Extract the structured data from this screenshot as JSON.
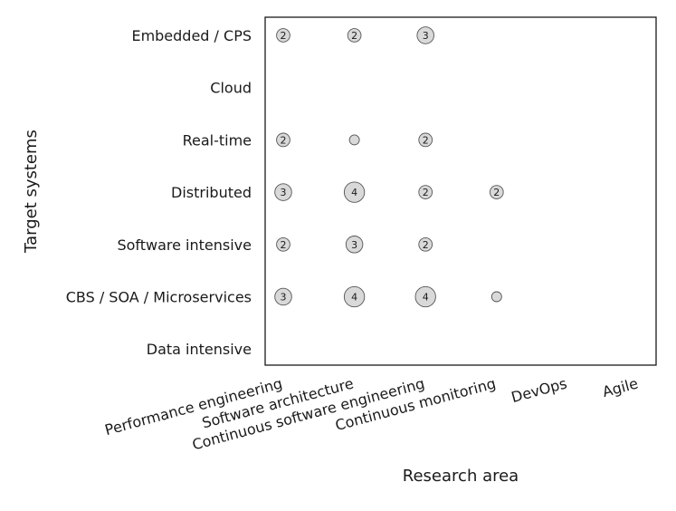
{
  "chart_data": {
    "type": "scatter",
    "xlabel": "Research area",
    "ylabel": "Target systems",
    "x_categories": [
      "Performance engineering",
      "Software architecture",
      "Continuous software engineering",
      "Continuous monitoring",
      "DevOps",
      "Agile"
    ],
    "y_categories": [
      "Embedded / CPS",
      "Cloud",
      "Real-time",
      "Distributed",
      "Software intensive",
      "CBS / SOA / Microservices",
      "Data intensive"
    ],
    "grid": false,
    "legend": "none",
    "marker_color": "#d9d9d9",
    "marker_edge_color": "#555555",
    "points": [
      {
        "x": "Performance engineering",
        "y": "Embedded / CPS",
        "count": 2,
        "label": "2"
      },
      {
        "x": "Software architecture",
        "y": "Embedded / CPS",
        "count": 2,
        "label": "2"
      },
      {
        "x": "Continuous software engineering",
        "y": "Embedded / CPS",
        "count": 3,
        "label": "3"
      },
      {
        "x": "Performance engineering",
        "y": "Real-time",
        "count": 2,
        "label": "2"
      },
      {
        "x": "Software architecture",
        "y": "Real-time",
        "count": 1,
        "label": ""
      },
      {
        "x": "Continuous software engineering",
        "y": "Real-time",
        "count": 2,
        "label": "2"
      },
      {
        "x": "Performance engineering",
        "y": "Distributed",
        "count": 3,
        "label": "3"
      },
      {
        "x": "Software architecture",
        "y": "Distributed",
        "count": 4,
        "label": "4"
      },
      {
        "x": "Continuous software engineering",
        "y": "Distributed",
        "count": 2,
        "label": "2"
      },
      {
        "x": "Continuous monitoring",
        "y": "Distributed",
        "count": 2,
        "label": "2"
      },
      {
        "x": "Performance engineering",
        "y": "Software intensive",
        "count": 2,
        "label": "2"
      },
      {
        "x": "Software architecture",
        "y": "Software intensive",
        "count": 3,
        "label": "3"
      },
      {
        "x": "Continuous software engineering",
        "y": "Software intensive",
        "count": 2,
        "label": "2"
      },
      {
        "x": "Performance engineering",
        "y": "CBS / SOA / Microservices",
        "count": 3,
        "label": "3"
      },
      {
        "x": "Software architecture",
        "y": "CBS / SOA / Microservices",
        "count": 4,
        "label": "4"
      },
      {
        "x": "Continuous software engineering",
        "y": "CBS / SOA / Microservices",
        "count": 4,
        "label": "4"
      },
      {
        "x": "Continuous monitoring",
        "y": "CBS / SOA / Microservices",
        "count": 1,
        "label": ""
      }
    ]
  }
}
